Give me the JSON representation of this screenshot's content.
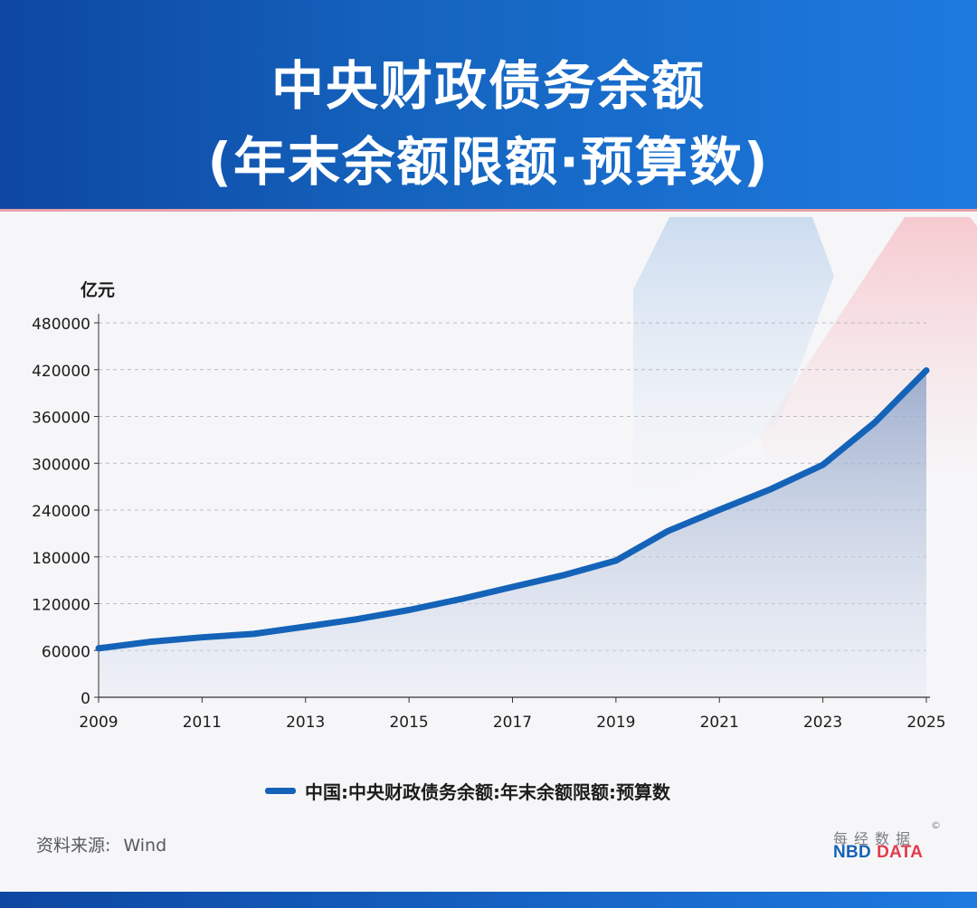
{
  "header": {
    "title_line1": "中央财政债务余额",
    "title_line2": "(年末余额限额·预算数)"
  },
  "chart_data": {
    "type": "area",
    "ylabel": "亿元",
    "xlabel": "",
    "x": [
      2009,
      2010,
      2011,
      2012,
      2013,
      2014,
      2015,
      2016,
      2017,
      2018,
      2019,
      2020,
      2021,
      2022,
      2023,
      2024,
      2025
    ],
    "x_ticks": [
      "2009",
      "2011",
      "2013",
      "2015",
      "2017",
      "2019",
      "2021",
      "2023",
      "2025"
    ],
    "y_ticks": [
      "0",
      "60000",
      "120000",
      "180000",
      "240000",
      "300000",
      "360000",
      "420000",
      "480000"
    ],
    "ylim": [
      0,
      480000
    ],
    "xlim": [
      2009,
      2025
    ],
    "grid": true,
    "legend_position": "bottom",
    "series": [
      {
        "name": "中国:中央财政债务余额:年末余额限额:预算数",
        "values": [
          62700,
          71200,
          76900,
          81300,
          90600,
          100200,
          111900,
          125900,
          141400,
          156700,
          175200,
          213000,
          240500,
          267000,
          298000,
          352000,
          419000
        ]
      }
    ]
  },
  "colors": {
    "line": "#1463b8",
    "header_start": "#0d47a1",
    "header_end": "#1e7ae0",
    "brand_blue": "#1463b8",
    "brand_red": "#e23b4b"
  },
  "footer": {
    "source_label": "资料来源:",
    "source_value": "Wind",
    "brand_cn": "每经数据",
    "brand_copyright": "©",
    "brand_en_1": "NBD",
    "brand_en_2": "DATA"
  }
}
